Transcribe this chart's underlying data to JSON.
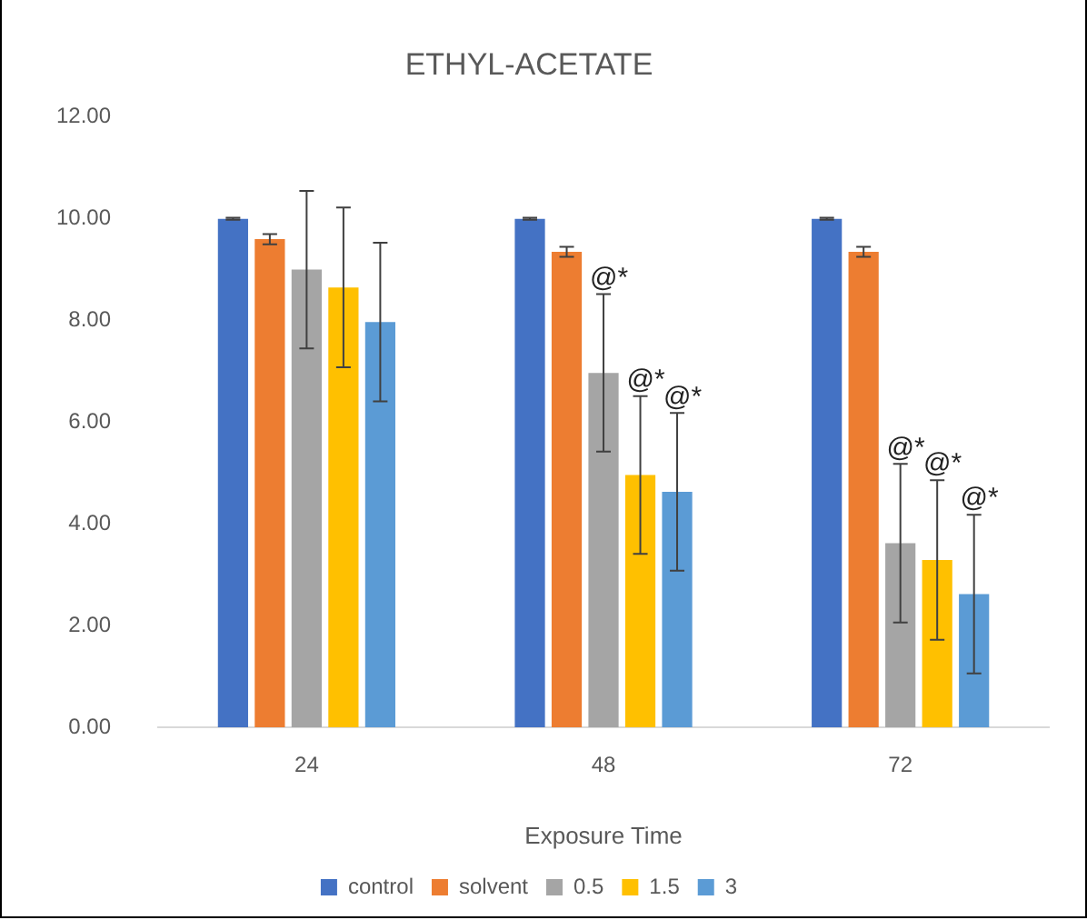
{
  "chart_data": {
    "type": "bar",
    "title": "ETHYL-ACETATE",
    "xlabel": "Exposure Time",
    "categories": [
      "24",
      "48",
      "72"
    ],
    "series": [
      {
        "name": "control",
        "color": "#4472c4",
        "values": [
          10.0,
          10.0,
          10.0
        ],
        "errors": [
          0.02,
          0.02,
          0.02
        ]
      },
      {
        "name": "solvent",
        "color": "#ed7d31",
        "values": [
          9.6,
          9.35,
          9.35
        ],
        "errors": [
          0.1,
          0.1,
          0.1
        ]
      },
      {
        "name": "0.5",
        "color": "#a5a5a5",
        "values": [
          9.0,
          6.97,
          3.62
        ],
        "errors": [
          1.55,
          1.55,
          1.56
        ]
      },
      {
        "name": "1.5",
        "color": "#ffc000",
        "values": [
          8.65,
          4.96,
          3.29
        ],
        "errors": [
          1.57,
          1.55,
          1.57
        ]
      },
      {
        "name": "3",
        "color": "#5b9bd5",
        "values": [
          7.97,
          4.63,
          2.62
        ],
        "errors": [
          1.56,
          1.55,
          1.56
        ]
      }
    ],
    "ylim": [
      0,
      12
    ],
    "yticks": [
      {
        "value": 0,
        "label": "0.00"
      },
      {
        "value": 2,
        "label": "2.00"
      },
      {
        "value": 4,
        "label": "4.00"
      },
      {
        "value": 6,
        "label": "6.00"
      },
      {
        "value": 8,
        "label": "8.00"
      },
      {
        "value": 10,
        "label": "10.00"
      },
      {
        "value": 12,
        "label": "12.00"
      }
    ],
    "grid": false,
    "legend": "bottom",
    "annotations": [
      {
        "text": "@*",
        "x": "48",
        "y": 8.52
      },
      {
        "text": "@*",
        "x": "48",
        "y": 6.51
      },
      {
        "text": "@*",
        "x": "48",
        "y": 6.18
      },
      {
        "text": "@*",
        "x": "72",
        "y": 5.18
      },
      {
        "text": "@*",
        "x": "72",
        "y": 4.86
      },
      {
        "text": "@*",
        "x": "72",
        "y": 4.18
      }
    ]
  }
}
